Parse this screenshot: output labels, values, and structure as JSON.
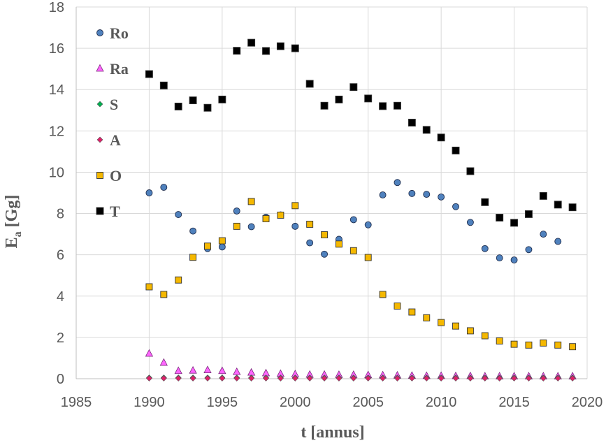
{
  "chart_data": {
    "type": "scatter",
    "xlabel": "t [annus]",
    "ylabel": {
      "main": "E",
      "sub": "a",
      "unit": " [Gg]"
    },
    "xlim": [
      1985,
      2020
    ],
    "ylim": [
      0,
      18
    ],
    "xticks": [
      1985,
      1990,
      1995,
      2000,
      2005,
      2010,
      2015,
      2020
    ],
    "yticks": [
      0,
      2,
      4,
      6,
      8,
      10,
      12,
      14,
      16,
      18
    ],
    "grid": true,
    "legend_position": "top-left",
    "x": [
      1990,
      1991,
      1992,
      1993,
      1994,
      1995,
      1996,
      1997,
      1998,
      1999,
      2000,
      2001,
      2002,
      2003,
      2004,
      2005,
      2006,
      2007,
      2008,
      2009,
      2010,
      2011,
      2012,
      2013,
      2014,
      2015,
      2016,
      2017,
      2018,
      2019
    ],
    "series": [
      {
        "name": "Ro",
        "marker": "circle",
        "color": "#4f81bd",
        "values": [
          9.0,
          9.27,
          7.95,
          7.15,
          6.3,
          6.38,
          8.12,
          7.36,
          7.82,
          7.93,
          7.38,
          6.58,
          6.03,
          6.75,
          7.7,
          7.45,
          8.9,
          9.5,
          8.97,
          8.93,
          8.8,
          8.33,
          7.57,
          6.3,
          5.85,
          5.75,
          6.25,
          7.0,
          6.65,
          null
        ]
      },
      {
        "name": "Ra",
        "marker": "triangle",
        "color": "#ff66ff",
        "values": [
          1.22,
          0.78,
          0.38,
          0.4,
          0.42,
          0.38,
          0.33,
          0.3,
          0.27,
          0.24,
          0.22,
          0.2,
          0.2,
          0.19,
          0.19,
          0.18,
          0.17,
          0.16,
          0.15,
          0.14,
          0.14,
          0.13,
          0.13,
          0.12,
          0.12,
          0.12,
          0.12,
          0.12,
          0.12,
          0.12
        ]
      },
      {
        "name": "S",
        "marker": "diamond",
        "color": "#00b050",
        "values": [
          0.05,
          0.05,
          0.05,
          0.05,
          0.05,
          0.05,
          0.05,
          0.05,
          0.05,
          0.05,
          0.05,
          0.05,
          0.05,
          0.05,
          0.05,
          0.05,
          0.05,
          0.05,
          0.05,
          0.05,
          0.05,
          0.05,
          0.05,
          0.05,
          0.05,
          0.05,
          0.05,
          0.05,
          0.05,
          0.05
        ]
      },
      {
        "name": "A",
        "marker": "diamond",
        "color": "#e0206a",
        "values": [
          0.02,
          0.02,
          0.02,
          0.02,
          0.02,
          0.02,
          0.02,
          0.02,
          0.02,
          0.02,
          0.02,
          0.02,
          0.02,
          0.02,
          0.02,
          0.02,
          0.02,
          0.02,
          0.02,
          0.02,
          0.02,
          0.02,
          0.02,
          0.02,
          0.02,
          0.02,
          0.02,
          0.02,
          0.02,
          0.02
        ]
      },
      {
        "name": "O",
        "marker": "square",
        "color": "#f5b800",
        "values": [
          4.45,
          4.08,
          4.78,
          5.88,
          6.42,
          6.68,
          7.38,
          8.58,
          7.75,
          7.92,
          8.38,
          7.48,
          6.97,
          6.52,
          6.2,
          5.87,
          4.08,
          3.52,
          3.23,
          2.95,
          2.72,
          2.55,
          2.32,
          2.08,
          1.83,
          1.67,
          1.63,
          1.73,
          1.63,
          1.55
        ]
      },
      {
        "name": "T",
        "marker": "square",
        "color": "#000000",
        "values": [
          14.75,
          14.2,
          13.18,
          13.48,
          13.12,
          13.52,
          15.88,
          16.27,
          15.87,
          16.1,
          16.0,
          14.28,
          13.22,
          13.52,
          14.12,
          13.57,
          13.2,
          13.22,
          12.4,
          12.05,
          11.68,
          11.05,
          10.05,
          8.55,
          7.8,
          7.55,
          7.97,
          8.85,
          8.43,
          8.3
        ]
      }
    ]
  }
}
